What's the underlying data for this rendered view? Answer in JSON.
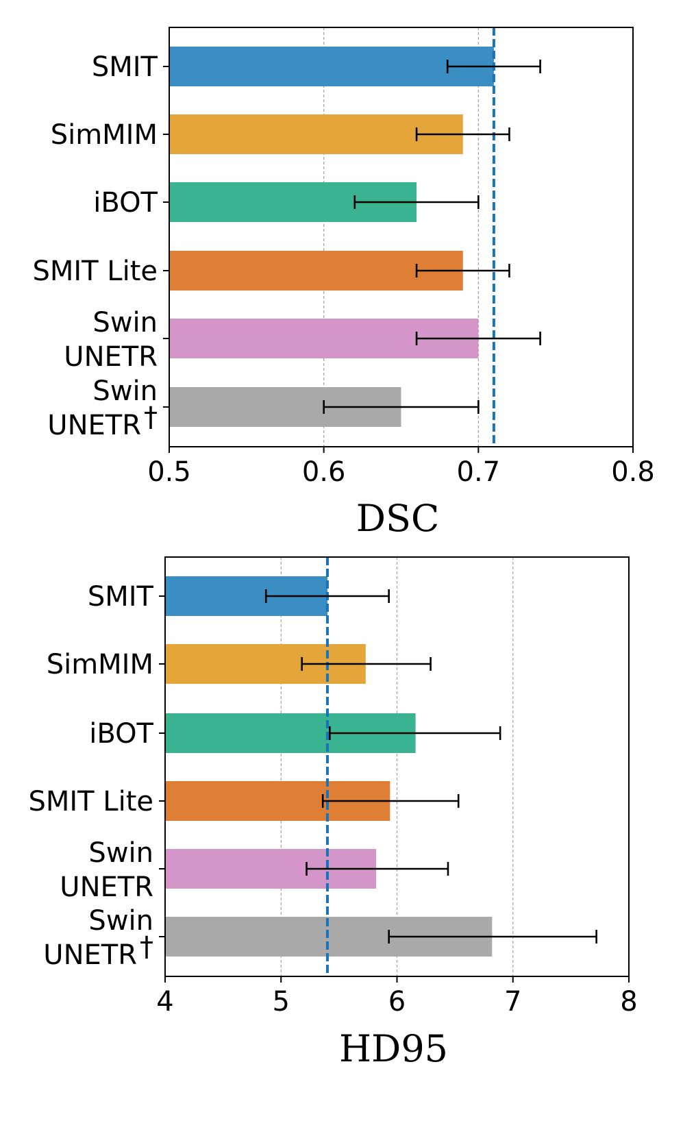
{
  "chart_data": [
    {
      "type": "bar",
      "orientation": "horizontal",
      "xlabel": "DSC",
      "xlim": [
        0.5,
        0.8
      ],
      "xticks": [
        "0.5",
        "0.6",
        "0.7",
        "0.8"
      ],
      "grid": "vertical dashed",
      "categories": [
        {
          "lines": [
            "SMIT"
          ],
          "dagger": false
        },
        {
          "lines": [
            "SimMIM"
          ],
          "dagger": false
        },
        {
          "lines": [
            "iBOT"
          ],
          "dagger": false
        },
        {
          "lines": [
            "SMIT Lite"
          ],
          "dagger": false
        },
        {
          "lines": [
            "Swin",
            "UNETR"
          ],
          "dagger": false
        },
        {
          "lines": [
            "Swin",
            "UNETR"
          ],
          "dagger": true
        }
      ],
      "dagger_symbol": "†",
      "values": [
        0.71,
        0.69,
        0.66,
        0.69,
        0.7,
        0.65
      ],
      "err_low": [
        0.68,
        0.66,
        0.62,
        0.66,
        0.66,
        0.6
      ],
      "err_high": [
        0.74,
        0.72,
        0.7,
        0.72,
        0.74,
        0.7
      ],
      "reference_line": 0.71,
      "colors": [
        "#3a8ec3",
        "#e4a53a",
        "#3ab390",
        "#de7f35",
        "#d496c9",
        "#a9a9a9"
      ],
      "reference_color": "#1874b8"
    },
    {
      "type": "bar",
      "orientation": "horizontal",
      "xlabel": "HD95",
      "xlim": [
        4,
        8
      ],
      "xticks": [
        "4",
        "5",
        "6",
        "7",
        "8"
      ],
      "grid": "vertical dashed",
      "categories": [
        {
          "lines": [
            "SMIT"
          ],
          "dagger": false
        },
        {
          "lines": [
            "SimMIM"
          ],
          "dagger": false
        },
        {
          "lines": [
            "iBOT"
          ],
          "dagger": false
        },
        {
          "lines": [
            "SMIT Lite"
          ],
          "dagger": false
        },
        {
          "lines": [
            "Swin",
            "UNETR"
          ],
          "dagger": false
        },
        {
          "lines": [
            "Swin",
            "UNETR"
          ],
          "dagger": true
        }
      ],
      "dagger_symbol": "†",
      "values": [
        5.4,
        5.73,
        6.16,
        5.94,
        5.82,
        6.82
      ],
      "err_low": [
        4.87,
        5.18,
        5.42,
        5.36,
        5.22,
        5.93
      ],
      "err_high": [
        5.93,
        6.29,
        6.89,
        6.53,
        6.44,
        7.72
      ],
      "reference_line": 5.4,
      "colors": [
        "#3a8ec3",
        "#e4a53a",
        "#3ab390",
        "#de7f35",
        "#d496c9",
        "#a9a9a9"
      ],
      "reference_color": "#1874b8"
    }
  ]
}
